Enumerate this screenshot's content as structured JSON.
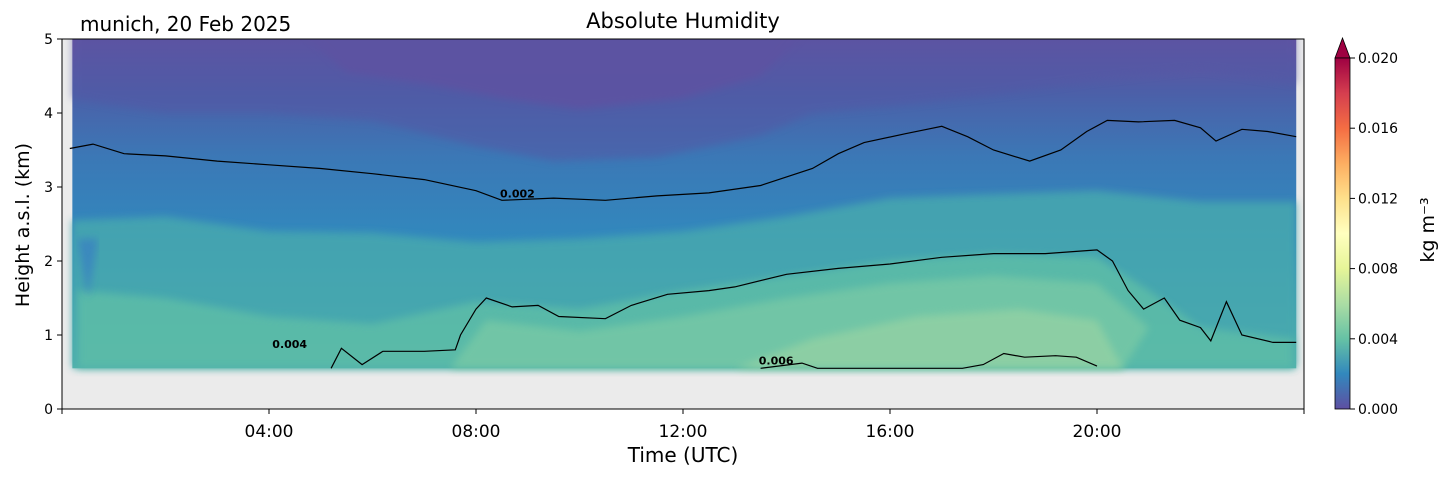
{
  "station_label": "munich, 20 Feb 2025",
  "chart_data": {
    "type": "heatmap",
    "title": "Absolute Humidity",
    "xlabel": "Time (UTC)",
    "ylabel": "Height a.s.l. (km)",
    "x_range_hours": [
      0,
      24
    ],
    "x_ticks": [
      {
        "hour": 4,
        "label": "04:00"
      },
      {
        "hour": 8,
        "label": "08:00"
      },
      {
        "hour": 12,
        "label": "12:00"
      },
      {
        "hour": 16,
        "label": "16:00"
      },
      {
        "hour": 20,
        "label": "20:00"
      }
    ],
    "ylim": [
      0,
      5
    ],
    "y_ticks": [
      "0",
      "1",
      "2",
      "3",
      "4",
      "5"
    ],
    "no_data_below_km": 0.55,
    "colorbar": {
      "label": "kg m⁻³",
      "range": [
        0.0,
        0.02
      ],
      "tick_labels": [
        "0.000",
        "0.004",
        "0.008",
        "0.012",
        "0.016",
        "0.020"
      ],
      "extend": "max",
      "colormap": "Spectral_r",
      "colors": [
        "#5e4fa2",
        "#3288bd",
        "#66c2a5",
        "#abdda4",
        "#e6f598",
        "#ffffbf",
        "#fee08b",
        "#fdae61",
        "#f46d43",
        "#d53e4f",
        "#9e0142"
      ]
    },
    "isolines": [
      {
        "value": 0.002,
        "label": "0.002",
        "label_at_hour": 8.8,
        "points": [
          [
            0.15,
            3.52
          ],
          [
            0.6,
            3.58
          ],
          [
            1.2,
            3.45
          ],
          [
            2.0,
            3.42
          ],
          [
            3.0,
            3.35
          ],
          [
            4.0,
            3.3
          ],
          [
            5.0,
            3.25
          ],
          [
            6.0,
            3.18
          ],
          [
            7.0,
            3.1
          ],
          [
            8.0,
            2.95
          ],
          [
            8.5,
            2.82
          ],
          [
            9.5,
            2.85
          ],
          [
            10.5,
            2.82
          ],
          [
            11.5,
            2.88
          ],
          [
            12.5,
            2.92
          ],
          [
            13.5,
            3.02
          ],
          [
            14.5,
            3.25
          ],
          [
            15.0,
            3.45
          ],
          [
            15.5,
            3.6
          ],
          [
            16.3,
            3.72
          ],
          [
            17.0,
            3.82
          ],
          [
            17.5,
            3.68
          ],
          [
            18.0,
            3.5
          ],
          [
            18.7,
            3.35
          ],
          [
            19.3,
            3.5
          ],
          [
            19.8,
            3.75
          ],
          [
            20.2,
            3.9
          ],
          [
            20.8,
            3.88
          ],
          [
            21.5,
            3.9
          ],
          [
            22.0,
            3.8
          ],
          [
            22.3,
            3.62
          ],
          [
            22.8,
            3.78
          ],
          [
            23.3,
            3.75
          ],
          [
            23.85,
            3.68
          ]
        ]
      },
      {
        "value": 0.004,
        "label": "0.004",
        "label_at_hour": 4.4,
        "points": [
          [
            5.2,
            0.55
          ],
          [
            5.4,
            0.82
          ],
          [
            5.8,
            0.6
          ],
          [
            6.2,
            0.78
          ],
          [
            7.0,
            0.78
          ],
          [
            7.6,
            0.8
          ],
          [
            7.7,
            1.0
          ],
          [
            8.0,
            1.35
          ],
          [
            8.2,
            1.5
          ],
          [
            8.7,
            1.38
          ],
          [
            9.2,
            1.4
          ],
          [
            9.6,
            1.25
          ],
          [
            10.5,
            1.22
          ],
          [
            11.0,
            1.4
          ],
          [
            11.7,
            1.55
          ],
          [
            12.5,
            1.6
          ],
          [
            13.0,
            1.65
          ],
          [
            14.0,
            1.82
          ],
          [
            15.0,
            1.9
          ],
          [
            16.0,
            1.96
          ],
          [
            17.0,
            2.05
          ],
          [
            18.0,
            2.1
          ],
          [
            19.0,
            2.1
          ],
          [
            20.0,
            2.15
          ],
          [
            20.3,
            2.0
          ],
          [
            20.6,
            1.6
          ],
          [
            20.9,
            1.35
          ],
          [
            21.3,
            1.5
          ],
          [
            21.6,
            1.2
          ],
          [
            22.0,
            1.1
          ],
          [
            22.2,
            0.92
          ],
          [
            22.5,
            1.45
          ],
          [
            22.8,
            1.0
          ],
          [
            23.4,
            0.9
          ],
          [
            23.85,
            0.9
          ]
        ]
      },
      {
        "value": 0.006,
        "label": "0.006",
        "label_at_hour": 13.8,
        "points": [
          [
            13.5,
            0.55
          ],
          [
            14.3,
            0.62
          ],
          [
            14.6,
            0.55
          ],
          [
            17.4,
            0.55
          ],
          [
            17.8,
            0.6
          ],
          [
            18.2,
            0.75
          ],
          [
            18.6,
            0.7
          ],
          [
            19.2,
            0.72
          ],
          [
            19.6,
            0.7
          ],
          [
            20.0,
            0.58
          ]
        ]
      }
    ]
  }
}
